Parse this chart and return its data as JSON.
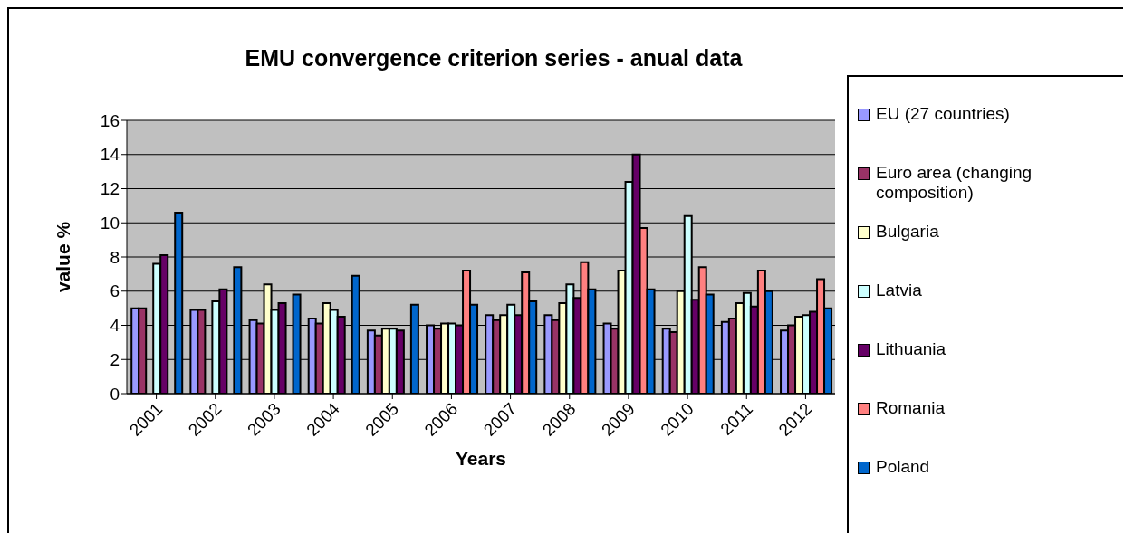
{
  "chart_data": {
    "type": "bar",
    "title": "EMU convergence criterion series - anual data",
    "xlabel": "Years",
    "ylabel": "value %",
    "categories": [
      "2001",
      "2002",
      "2003",
      "2004",
      "2005",
      "2006",
      "2007",
      "2008",
      "2009",
      "2010",
      "2011",
      "2012"
    ],
    "series": [
      {
        "name": "EU (27 countries)",
        "color": "#9999ff",
        "values": [
          5.0,
          4.9,
          4.3,
          4.4,
          3.7,
          4.0,
          4.6,
          4.6,
          4.1,
          3.8,
          4.2,
          3.7
        ]
      },
      {
        "name": "Euro area (changing composition)",
        "color": "#993366",
        "values": [
          5.0,
          4.9,
          4.1,
          4.1,
          3.4,
          3.8,
          4.3,
          4.3,
          3.8,
          3.6,
          4.4,
          4.0
        ]
      },
      {
        "name": "Bulgaria",
        "color": "#ffffcc",
        "values": [
          null,
          null,
          6.4,
          5.3,
          3.8,
          4.1,
          4.6,
          5.3,
          7.2,
          6.0,
          5.3,
          4.5
        ]
      },
      {
        "name": "Latvia",
        "color": "#ccffff",
        "values": [
          7.6,
          5.4,
          4.9,
          4.9,
          3.8,
          4.1,
          5.2,
          6.4,
          12.4,
          10.4,
          5.9,
          4.6
        ]
      },
      {
        "name": "Lithuania",
        "color": "#660066",
        "values": [
          8.1,
          6.1,
          5.3,
          4.5,
          3.7,
          4.0,
          4.6,
          5.6,
          14.0,
          5.5,
          5.1,
          4.8
        ]
      },
      {
        "name": "Romania",
        "color": "#ff8080",
        "values": [
          null,
          null,
          null,
          null,
          null,
          7.2,
          7.1,
          7.7,
          9.7,
          7.4,
          7.2,
          6.7
        ]
      },
      {
        "name": "Poland",
        "color": "#0066cc",
        "values": [
          10.6,
          7.4,
          5.8,
          6.9,
          5.2,
          5.2,
          5.4,
          6.1,
          6.1,
          5.8,
          6.0,
          5.0
        ]
      }
    ],
    "ylim": [
      0,
      16
    ],
    "yticks": [
      0,
      2,
      4,
      6,
      8,
      10,
      12,
      14,
      16
    ],
    "grid": "y",
    "legend": "right"
  }
}
